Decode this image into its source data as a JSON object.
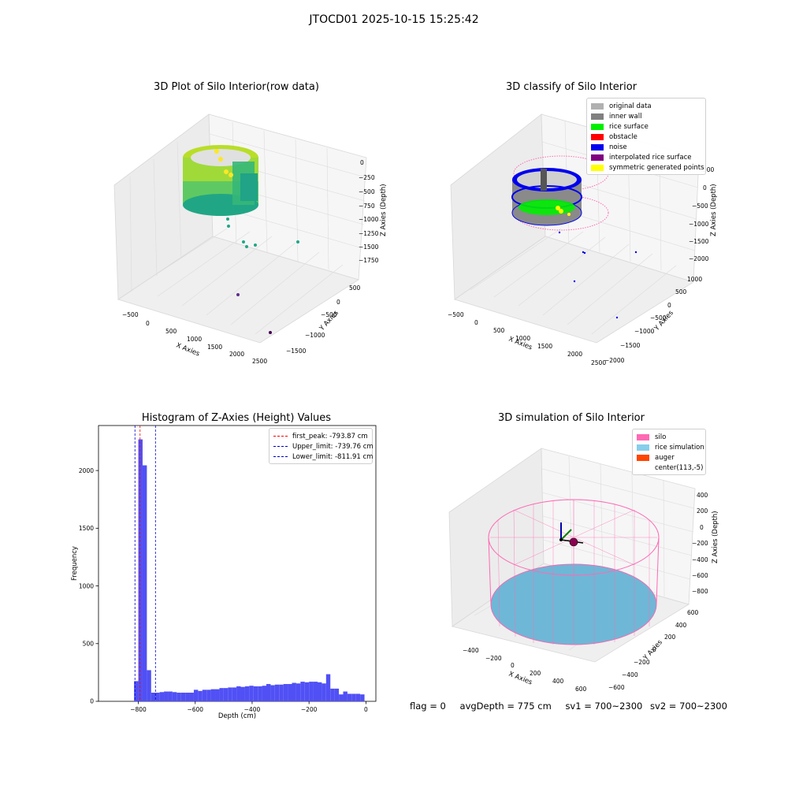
{
  "figure": {
    "suptitle": "JTOCD01 2025-10-15 15:25:42",
    "footer": {
      "flag": "flag = 0",
      "avg": "avgDepth = 775 cm",
      "sv1": "sv1 = 700~2300",
      "sv2": "sv2 = 700~2300"
    }
  },
  "panels": {
    "raw": {
      "title": "3D Plot of Silo Interior(row data)",
      "xlabel": "X Axies",
      "ylabel": "Y Axies",
      "zlabel": "Z Axies (Depth)",
      "xticks": [
        "−500",
        "0",
        "500",
        "1000",
        "1500",
        "2000",
        "2500"
      ],
      "yticks": [
        "500",
        "0",
        "−500",
        "−1000",
        "−1500"
      ],
      "zticks": [
        "0",
        "−250",
        "−500",
        "−750",
        "−1000",
        "−1250",
        "−1500",
        "−1750"
      ]
    },
    "classify": {
      "title": "3D classify of Silo Interior",
      "xlabel": "X Axies",
      "ylabel": "Y Axies",
      "zlabel": "Z Axies (Depth)",
      "xticks": [
        "−500",
        "0",
        "500",
        "1000",
        "1500",
        "2000",
        "2500"
      ],
      "yticks": [
        "1000",
        "500",
        "0",
        "−500",
        "−1000",
        "−1500",
        "−2000"
      ],
      "zticks": [
        "500",
        "0",
        "−500",
        "−1000",
        "−1500",
        "−2000"
      ],
      "legend": [
        {
          "label": "original data",
          "color": "#b0b0b0"
        },
        {
          "label": "inner wall",
          "color": "#808080"
        },
        {
          "label": "rice surface",
          "color": "#00ee00"
        },
        {
          "label": "obstacle",
          "color": "#ff0000"
        },
        {
          "label": "noise",
          "color": "#0000ee"
        },
        {
          "label": "interpolated rice surface",
          "color": "#800080"
        },
        {
          "label": "symmetric generated points",
          "color": "#ffff00"
        }
      ]
    },
    "simulation": {
      "title": "3D simulation of Silo Interior",
      "xlabel": "X Axies",
      "ylabel": "Y Axies",
      "zlabel": "Z Axies (Depth)",
      "xticks": [
        "−400",
        "−200",
        "0",
        "200",
        "400",
        "600"
      ],
      "yticks": [
        "600",
        "400",
        "200",
        "0",
        "−200",
        "−400",
        "−600"
      ],
      "zticks": [
        "400",
        "200",
        "0",
        "−200",
        "−400",
        "−600",
        "−800"
      ],
      "legend": [
        {
          "label": "silo",
          "color": "#ff69b4"
        },
        {
          "label": "rice simulation",
          "color": "#87ceeb"
        },
        {
          "label": "auger",
          "color": "#ff4500"
        },
        {
          "label": "center(113,-5)",
          "color": "#ffffff"
        }
      ]
    }
  },
  "chart_data": {
    "type": "bar",
    "title": "Histogram of Z-Axies (Height) Values",
    "xlabel": "Depth (cm)",
    "ylabel": "Frequency",
    "xlim": [
      -940,
      35
    ],
    "ylim": [
      0,
      2390
    ],
    "xticks": [
      -800,
      -600,
      -400,
      -200,
      0
    ],
    "yticks": [
      0,
      500,
      1000,
      1500,
      2000
    ],
    "bar_color": "#5050f5",
    "bins": [
      {
        "x0": -815,
        "x1": -800,
        "value": 175
      },
      {
        "x0": -800,
        "x1": -785,
        "value": 2270
      },
      {
        "x0": -785,
        "x1": -770,
        "value": 2045
      },
      {
        "x0": -770,
        "x1": -755,
        "value": 270
      },
      {
        "x0": -755,
        "x1": -740,
        "value": 75
      },
      {
        "x0": -740,
        "x1": -725,
        "value": 75
      },
      {
        "x0": -725,
        "x1": -710,
        "value": 80
      },
      {
        "x0": -710,
        "x1": -695,
        "value": 85
      },
      {
        "x0": -695,
        "x1": -680,
        "value": 85
      },
      {
        "x0": -680,
        "x1": -665,
        "value": 80
      },
      {
        "x0": -665,
        "x1": -650,
        "value": 75
      },
      {
        "x0": -650,
        "x1": -635,
        "value": 75
      },
      {
        "x0": -635,
        "x1": -620,
        "value": 75
      },
      {
        "x0": -620,
        "x1": -605,
        "value": 75
      },
      {
        "x0": -605,
        "x1": -590,
        "value": 100
      },
      {
        "x0": -590,
        "x1": -575,
        "value": 90
      },
      {
        "x0": -575,
        "x1": -560,
        "value": 100
      },
      {
        "x0": -560,
        "x1": -545,
        "value": 100
      },
      {
        "x0": -545,
        "x1": -530,
        "value": 105
      },
      {
        "x0": -530,
        "x1": -515,
        "value": 105
      },
      {
        "x0": -515,
        "x1": -500,
        "value": 115
      },
      {
        "x0": -500,
        "x1": -485,
        "value": 115
      },
      {
        "x0": -485,
        "x1": -470,
        "value": 120
      },
      {
        "x0": -470,
        "x1": -455,
        "value": 120
      },
      {
        "x0": -455,
        "x1": -440,
        "value": 130
      },
      {
        "x0": -440,
        "x1": -425,
        "value": 125
      },
      {
        "x0": -425,
        "x1": -410,
        "value": 130
      },
      {
        "x0": -410,
        "x1": -395,
        "value": 135
      },
      {
        "x0": -395,
        "x1": -380,
        "value": 130
      },
      {
        "x0": -380,
        "x1": -365,
        "value": 130
      },
      {
        "x0": -365,
        "x1": -350,
        "value": 135
      },
      {
        "x0": -350,
        "x1": -335,
        "value": 150
      },
      {
        "x0": -335,
        "x1": -320,
        "value": 140
      },
      {
        "x0": -320,
        "x1": -305,
        "value": 145
      },
      {
        "x0": -305,
        "x1": -290,
        "value": 145
      },
      {
        "x0": -290,
        "x1": -275,
        "value": 150
      },
      {
        "x0": -275,
        "x1": -260,
        "value": 150
      },
      {
        "x0": -260,
        "x1": -245,
        "value": 160
      },
      {
        "x0": -245,
        "x1": -230,
        "value": 155
      },
      {
        "x0": -230,
        "x1": -215,
        "value": 170
      },
      {
        "x0": -215,
        "x1": -200,
        "value": 165
      },
      {
        "x0": -200,
        "x1": -185,
        "value": 170
      },
      {
        "x0": -185,
        "x1": -170,
        "value": 170
      },
      {
        "x0": -170,
        "x1": -155,
        "value": 165
      },
      {
        "x0": -155,
        "x1": -140,
        "value": 155
      },
      {
        "x0": -140,
        "x1": -125,
        "value": 235
      },
      {
        "x0": -125,
        "x1": -110,
        "value": 110
      },
      {
        "x0": -110,
        "x1": -95,
        "value": 110
      },
      {
        "x0": -95,
        "x1": -80,
        "value": 60
      },
      {
        "x0": -80,
        "x1": -65,
        "value": 85
      },
      {
        "x0": -65,
        "x1": -50,
        "value": 65
      },
      {
        "x0": -50,
        "x1": -35,
        "value": 65
      },
      {
        "x0": -35,
        "x1": -20,
        "value": 65
      },
      {
        "x0": -20,
        "x1": -5,
        "value": 60
      }
    ],
    "vlines": [
      {
        "label": "first_peak: -793.87 cm",
        "x": -793.87,
        "color": "#ff0000"
      },
      {
        "label": "Upper_limit: -739.76 cm",
        "x": -739.76,
        "color": "#0000cc"
      },
      {
        "label": "Lower_limit: -811.91 cm",
        "x": -811.91,
        "color": "#0000cc"
      }
    ],
    "legend_position": "upper right"
  }
}
